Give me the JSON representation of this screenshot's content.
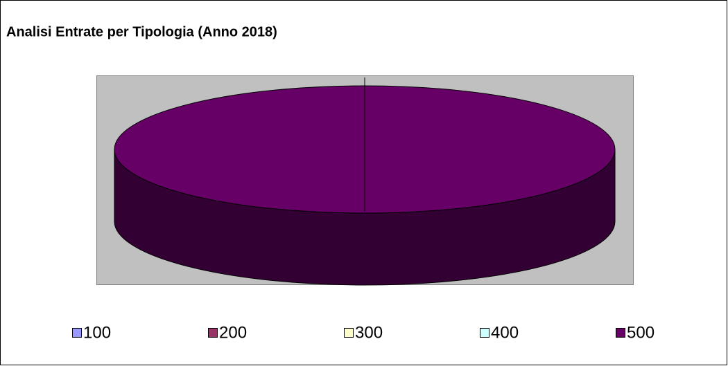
{
  "chart_data": {
    "type": "pie",
    "title": "Analisi Entrate per Tipologia (Anno 2018)",
    "categories": [
      "100",
      "200",
      "300",
      "400",
      "500"
    ],
    "values": [
      0,
      0,
      0,
      0,
      100
    ],
    "colors": [
      "#9999ff",
      "#993366",
      "#ffffcc",
      "#ccffff",
      "#660066"
    ],
    "legend": "bottom"
  }
}
